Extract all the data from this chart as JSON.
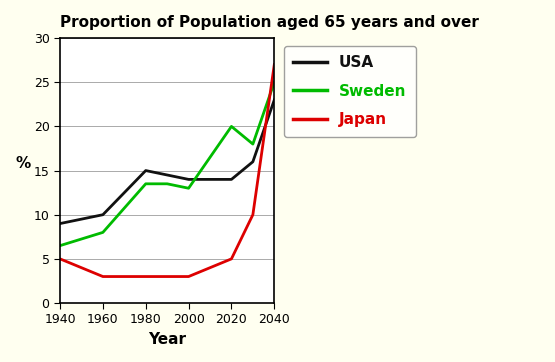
{
  "title": "Proportion of Population aged 65 years and over",
  "xlabel": "Year",
  "ylabel": "%",
  "years": [
    1940,
    1960,
    1980,
    1990,
    2000,
    2020,
    2030,
    2040
  ],
  "usa": [
    9,
    10,
    15,
    14.5,
    14,
    14,
    16,
    23
  ],
  "sweden": [
    6.5,
    8,
    13.5,
    13.5,
    13,
    20,
    18,
    25
  ],
  "japan": [
    5,
    3,
    3,
    3,
    3,
    5,
    10,
    27
  ],
  "usa_color": "#111111",
  "sweden_color": "#00bb00",
  "japan_color": "#dd0000",
  "ylim": [
    0,
    30
  ],
  "xlim": [
    1940,
    2040
  ],
  "xticks": [
    1940,
    1960,
    1980,
    2000,
    2020,
    2040
  ],
  "yticks": [
    0,
    5,
    10,
    15,
    20,
    25,
    30
  ],
  "outer_bg": "#fffff0",
  "plot_bg": "#ffffff",
  "title_fontsize": 11,
  "legend_labels": [
    "USA",
    "Sweden",
    "Japan"
  ],
  "linewidth": 2.0
}
